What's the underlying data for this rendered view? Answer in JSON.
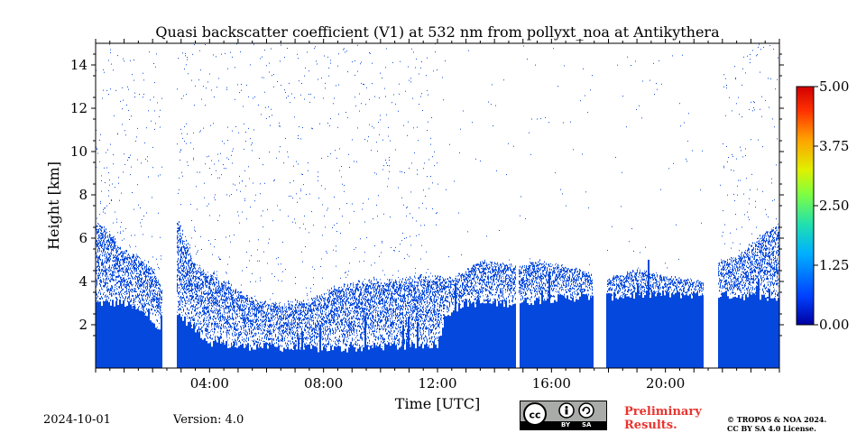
{
  "chart_data": {
    "type": "heatmap",
    "title": "Quasi backscatter coefficient (V1) at 532 nm from pollyxt_noa at Antikythera",
    "xlabel": "Time [UTC]",
    "ylabel": "Height [km]",
    "xlim": [
      0,
      24
    ],
    "ylim": [
      0,
      15
    ],
    "x_ticks": [
      "04:00",
      "08:00",
      "12:00",
      "16:00",
      "20:00"
    ],
    "y_ticks": [
      "2",
      "4",
      "6",
      "8",
      "10",
      "12",
      "14"
    ],
    "colorbar": {
      "min": 0,
      "max": 5,
      "ticks": [
        "0.00",
        "1.25",
        "2.50",
        "3.75",
        "5.00"
      ],
      "colormap": "jet"
    },
    "fill_color": "#0548dd",
    "data_gaps_utc": [
      [
        2.35,
        2.85
      ],
      [
        14.75,
        14.85
      ],
      [
        17.45,
        17.95
      ],
      [
        21.35,
        21.85
      ]
    ],
    "signal_top_km": [
      [
        0.0,
        6.5
      ],
      [
        0.5,
        6.0
      ],
      [
        1.0,
        5.2
      ],
      [
        1.5,
        5.0
      ],
      [
        2.0,
        4.5
      ],
      [
        2.3,
        3.5
      ],
      [
        2.9,
        6.5
      ],
      [
        3.5,
        4.5
      ],
      [
        4.5,
        3.8
      ],
      [
        5.5,
        3.0
      ],
      [
        6.5,
        2.8
      ],
      [
        7.5,
        3.0
      ],
      [
        8.5,
        3.5
      ],
      [
        9.5,
        3.8
      ],
      [
        10.5,
        3.8
      ],
      [
        11.5,
        4.0
      ],
      [
        12.3,
        4.0
      ],
      [
        12.9,
        4.3
      ],
      [
        13.5,
        4.8
      ],
      [
        14.7,
        4.6
      ],
      [
        15.5,
        4.8
      ],
      [
        16.5,
        4.6
      ],
      [
        17.4,
        4.3
      ],
      [
        18.0,
        4.1
      ],
      [
        19.0,
        4.5
      ],
      [
        20.0,
        4.2
      ],
      [
        21.3,
        4.0
      ],
      [
        21.9,
        4.8
      ],
      [
        22.5,
        5.0
      ],
      [
        23.0,
        5.5
      ],
      [
        23.5,
        6.0
      ],
      [
        24.0,
        6.3
      ]
    ],
    "solid_top_km": [
      [
        0.0,
        3.0
      ],
      [
        1.0,
        3.0
      ],
      [
        2.0,
        2.3
      ],
      [
        2.3,
        1.5
      ],
      [
        2.9,
        2.5
      ],
      [
        4.0,
        1.2
      ],
      [
        5.0,
        1.0
      ],
      [
        6.0,
        1.0
      ],
      [
        7.0,
        0.9
      ],
      [
        8.0,
        0.9
      ],
      [
        9.0,
        0.9
      ],
      [
        10.0,
        1.0
      ],
      [
        11.0,
        1.0
      ],
      [
        12.0,
        1.1
      ],
      [
        12.3,
        2.5
      ],
      [
        13.0,
        3.0
      ],
      [
        14.7,
        3.0
      ],
      [
        16.0,
        3.2
      ],
      [
        17.4,
        3.3
      ],
      [
        18.0,
        3.3
      ],
      [
        19.5,
        3.4
      ],
      [
        21.3,
        3.4
      ],
      [
        21.9,
        3.4
      ],
      [
        23.0,
        3.3
      ],
      [
        24.0,
        3.2
      ]
    ]
  },
  "footer": {
    "date": "2024-10-01",
    "version": "Version: 4.0",
    "preliminary_line1": "Preliminary",
    "preliminary_line2": "Results.",
    "copyright_line1": "© TROPOS & NOA 2024.",
    "copyright_line2": "CC BY SA 4.0 License.",
    "license_badge": {
      "icons": [
        "cc-icon",
        "by-icon",
        "sa-icon"
      ],
      "by_label": "BY",
      "sa_label": "SA"
    }
  },
  "colors": {
    "preliminary": "#e8342f",
    "badge_gray": "#a8aba7"
  }
}
